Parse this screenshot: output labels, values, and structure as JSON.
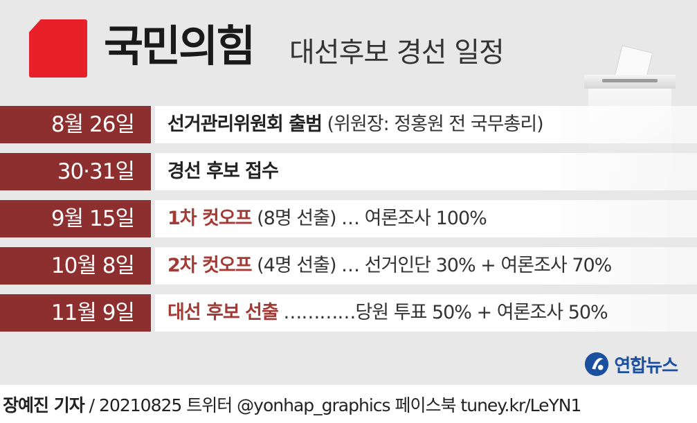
{
  "header": {
    "party": "국민의힘",
    "subtitle": "대선후보 경선 일정"
  },
  "schedule": [
    {
      "date": "8월 26일",
      "main": "선거관리위원회 출범",
      "detail": " (위원장: 정홍원 전 국무총리)"
    },
    {
      "date": "30·31일",
      "main": "경선 후보 접수",
      "detail": ""
    },
    {
      "date": "9월 15일",
      "main": "1차 컷오프",
      "detail": " (8명 선출) …  여론조사 100%"
    },
    {
      "date": "10월 8일",
      "main": "2차 컷오프",
      "detail": " (4명 선출) …  선거인단 30% + 여론조사 70%"
    },
    {
      "date": "11월 9일",
      "main": "대선 후보 선출",
      "detail": " …………당원 투표 50% + 여론조사 50%"
    }
  ],
  "agency": {
    "name": "연합뉴스"
  },
  "credit": {
    "reporter": "장예진 기자",
    "rest": " / 20210825 트위터 @yonhap_graphics  페이스북 tuney.kr/LeYN1"
  },
  "colors": {
    "accent_red": "#e8202a",
    "date_band": "#8c2f2e",
    "highlight_text": "#a33a35",
    "agency_blue": "#1b4fa0"
  },
  "icons": [
    "party-logo-mark",
    "ballot-box-icon",
    "yonhap-logo-icon"
  ]
}
